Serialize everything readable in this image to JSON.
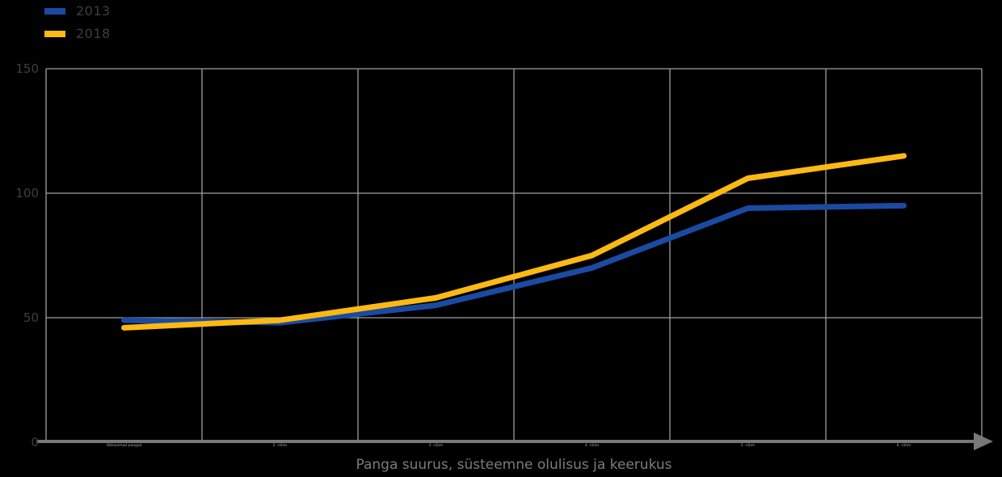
{
  "colors": {
    "background": "#000000",
    "grid": "#9e9e9e",
    "axis": "#787878",
    "faint_label": "#3e3e3e",
    "tiny_tick_label": "#a8a8a8",
    "axis_title": "#7c7c7c",
    "series_blue": "#1b4aa2",
    "series_yellow": "#fdb913"
  },
  "chart_data": {
    "type": "line",
    "title": "",
    "xlabel": "Panga suurus, süsteemne olulisus ja keerukus",
    "ylabel": "",
    "ylim": [
      0,
      150
    ],
    "yticks": [
      0,
      50,
      100,
      150
    ],
    "grid": true,
    "legend_position": "top-left",
    "categories": [
      "Väikseimad pangad",
      "2. rühm",
      "3. rühm",
      "4. rühm",
      "5. rühm",
      "6. rühm"
    ],
    "series": [
      {
        "name": "2013",
        "color": "#1b4aa2",
        "values": [
          49,
          48,
          55,
          70,
          94,
          95
        ]
      },
      {
        "name": "2018",
        "color": "#fdb913",
        "values": [
          46,
          49,
          58,
          75,
          106,
          115
        ]
      }
    ]
  }
}
